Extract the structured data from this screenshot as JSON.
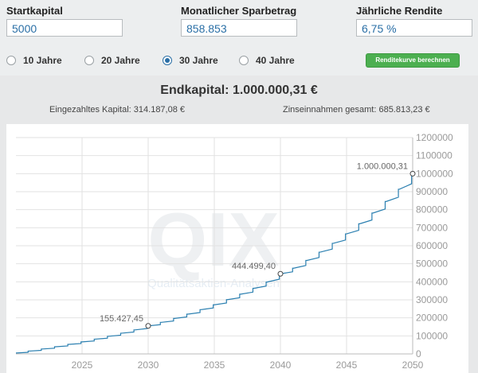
{
  "inputs": {
    "startkapital": {
      "label": "Startkapital",
      "value": "5000"
    },
    "sparbetrag": {
      "label": "Monatlicher Sparbetrag",
      "value": "858.853"
    },
    "rendite": {
      "label": "Jährliche Rendite",
      "value": "6,75 %"
    }
  },
  "radios": [
    {
      "label": "10 Jahre",
      "selected": false
    },
    {
      "label": "20 Jahre",
      "selected": false
    },
    {
      "label": "30 Jahre",
      "selected": true
    },
    {
      "label": "40 Jahre",
      "selected": false
    }
  ],
  "button_label": "Renditekurve berechnen",
  "result": {
    "endkapital": "Endkapital: 1.000.000,31 €",
    "eingezahlt": "Eingezahltes Kapital: 314.187,08 €",
    "zinsen": "Zinseinnahmen gesamt: 685.813,23 €"
  },
  "watermark": {
    "logo": "QIX",
    "text": "Qualitätsaktien-Analysen"
  },
  "colors": {
    "line": "#2a7fb0",
    "button": "#4caf50",
    "accent": "#2a6fa6"
  },
  "chart_data": {
    "type": "line",
    "title": "",
    "xlabel": "",
    "ylabel": "",
    "xlim": [
      2020,
      2050
    ],
    "ylim": [
      0,
      1200000
    ],
    "x_ticks": [
      2025,
      2030,
      2035,
      2040,
      2045,
      2050
    ],
    "y_ticks": [
      0,
      100000,
      200000,
      300000,
      400000,
      500000,
      600000,
      700000,
      800000,
      900000,
      1000000,
      1100000,
      1200000
    ],
    "grid": true,
    "y_axis_side": "right",
    "series": [
      {
        "name": "",
        "x": [
          2020,
          2021,
          2022,
          2023,
          2024,
          2025,
          2026,
          2027,
          2028,
          2029,
          2030,
          2031,
          2032,
          2033,
          2034,
          2035,
          2036,
          2037,
          2038,
          2039,
          2040,
          2041,
          2042,
          2043,
          2044,
          2045,
          2046,
          2047,
          2048,
          2049,
          2050
        ],
        "y": [
          5000,
          15800,
          27300,
          39600,
          52800,
          66800,
          81800,
          97800,
          114900,
          133100,
          155427,
          175000,
          197000,
          220500,
          245600,
          272400,
          301000,
          331500,
          364000,
          398800,
          444499,
          475500,
          518500,
          564500,
          613500,
          666000,
          722000,
          781500,
          845500,
          913500,
          1000000
        ]
      }
    ],
    "annotations": [
      {
        "x": 2030,
        "y": 155427,
        "label": "155.427,45"
      },
      {
        "x": 2040,
        "y": 444499,
        "label": "444.499,40"
      },
      {
        "x": 2050,
        "y": 1000000,
        "label": "1.000.000,31"
      }
    ]
  }
}
